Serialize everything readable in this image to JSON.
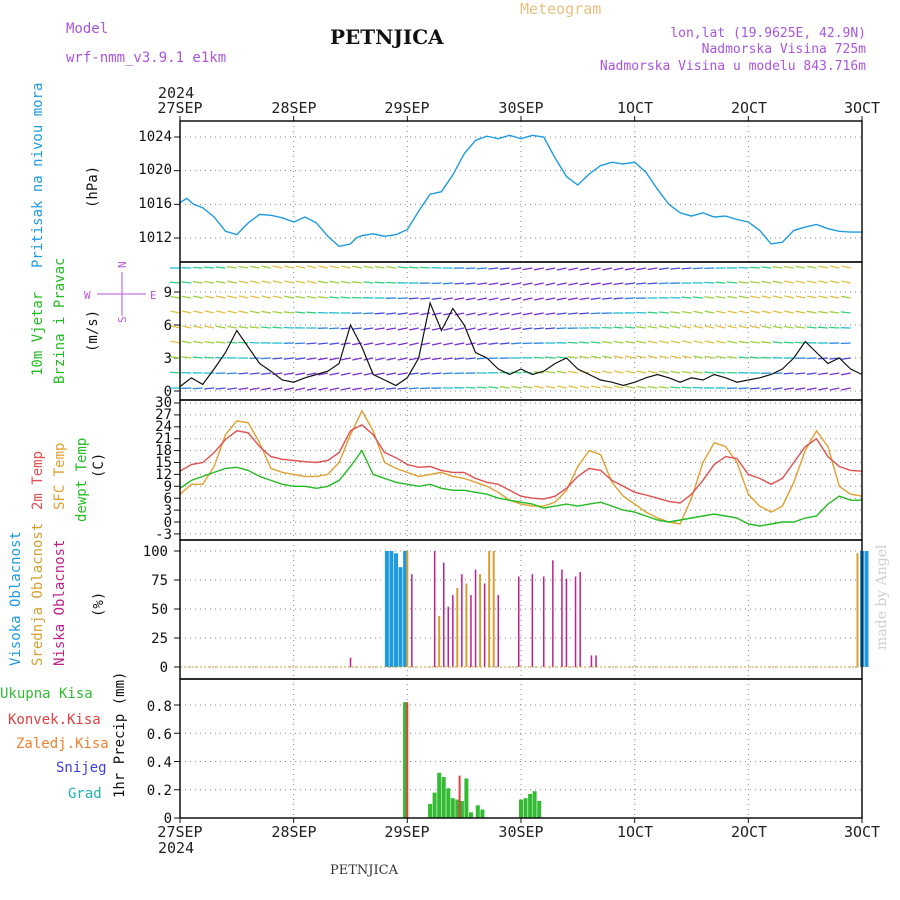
{
  "header": {
    "model_label": "Model",
    "model_name": "wrf-nmm_v3.9.1  e1km",
    "title": "PETNJICA",
    "meteogram": "Meteogram",
    "lonlat": "lon,lat (19.9625E, 42.9N)",
    "altitude": "Nadmorska Visina 725m",
    "model_altitude": "Nadmorska Visina u modelu 843.716m",
    "year_top": "2024",
    "year_bottom": "2024",
    "footer": "PETNJICA",
    "watermark": "made by Angel"
  },
  "colors": {
    "pressure": "#1e9be0",
    "wind_label": "#22bb22",
    "wind_axis_label": "#bb55dd",
    "temp2m": "#e05050",
    "sfc": "#e0a030",
    "dewpt": "#22bb22",
    "cloud_high": "#1e9be0",
    "cloud_mid": "#d4a030",
    "cloud_low": "#c0208a",
    "precip_total": "#33bb33",
    "precip_conv": "#e04040",
    "precip_frz": "#f08030",
    "precip_snow": "#4040dd",
    "precip_grad": "#22b0b0"
  },
  "chart_data": [
    {
      "type": "line",
      "panel": "pressure",
      "ylabel": "Pritisak na nivou mora",
      "unit": "(hPa)",
      "ylim": [
        1009.5,
        1026
      ],
      "yticks": [
        "1012",
        "1016",
        "1020",
        "1024"
      ],
      "x_tick_labels": [
        "27SEP",
        "28SEP",
        "29SEP",
        "30SEP",
        "1OCT",
        "2OCT",
        "3OCT"
      ],
      "x_tick_display": [
        "27SEP",
        "28SEP",
        "29SEP",
        "30SEP",
        "1OCT",
        "2OCT",
        "3OCT"
      ],
      "series": [
        {
          "name": "Pritisak na nivou mora",
          "x": [
            0,
            0.06,
            0.12,
            0.2,
            0.3,
            0.4,
            0.5,
            0.6,
            0.7,
            0.8,
            0.9,
            1.0,
            1.1,
            1.2,
            1.3,
            1.4,
            1.5,
            1.55,
            1.6,
            1.7,
            1.8,
            1.9,
            2.0,
            2.1,
            2.2,
            2.3,
            2.4,
            2.5,
            2.6,
            2.7,
            2.8,
            2.9,
            3.0,
            3.1,
            3.2,
            3.3,
            3.4,
            3.5,
            3.6,
            3.7,
            3.8,
            3.9,
            4.0,
            4.1,
            4.2,
            4.3,
            4.4,
            4.5,
            4.6,
            4.7,
            4.8,
            4.9,
            5.0,
            5.1,
            5.2,
            5.3,
            5.4,
            5.5,
            5.6,
            5.7,
            5.8,
            5.9,
            6.0
          ],
          "values": [
            1016.2,
            1016.7,
            1016.0,
            1015.6,
            1014.5,
            1012.8,
            1012.4,
            1013.8,
            1014.8,
            1014.7,
            1014.4,
            1013.9,
            1014.5,
            1013.8,
            1012.2,
            1011.0,
            1011.3,
            1012.0,
            1012.3,
            1012.5,
            1012.2,
            1012.4,
            1013.0,
            1015.2,
            1017.2,
            1017.5,
            1019.5,
            1022.0,
            1023.6,
            1024.1,
            1023.8,
            1024.2,
            1023.8,
            1024.2,
            1024.0,
            1021.5,
            1019.3,
            1018.3,
            1019.6,
            1020.6,
            1021.0,
            1020.8,
            1021.0,
            1019.8,
            1017.8,
            1016.0,
            1015.0,
            1014.6,
            1015.0,
            1014.5,
            1014.6,
            1014.2,
            1013.9,
            1012.9,
            1011.3,
            1011.5,
            1012.9,
            1013.3,
            1013.6,
            1013.1,
            1012.8,
            1012.7,
            1012.7
          ]
        }
      ]
    },
    {
      "type": "line",
      "panel": "wind",
      "ylabel_lines": [
        "10m Vjetar",
        "Brzina i Pravac"
      ],
      "unit": "(m/s)",
      "axis_note_w": "W",
      "axis_note_e": "E",
      "axis_note_n": "N",
      "axis_note_s": "S",
      "ylim": [
        0,
        12
      ],
      "yticks": [
        "0",
        "3",
        "6",
        "9"
      ],
      "series": [
        {
          "name": "Brzina",
          "x": [
            0,
            0.1,
            0.2,
            0.3,
            0.4,
            0.5,
            0.6,
            0.7,
            0.8,
            0.9,
            1.0,
            1.1,
            1.2,
            1.3,
            1.4,
            1.5,
            1.6,
            1.7,
            1.8,
            1.9,
            2.0,
            2.1,
            2.2,
            2.3,
            2.4,
            2.5,
            2.6,
            2.7,
            2.8,
            2.9,
            3.0,
            3.1,
            3.2,
            3.3,
            3.4,
            3.5,
            3.6,
            3.7,
            3.8,
            3.9,
            4.0,
            4.1,
            4.2,
            4.3,
            4.4,
            4.5,
            4.6,
            4.7,
            4.8,
            4.9,
            5.0,
            5.1,
            5.2,
            5.3,
            5.4,
            5.5,
            5.6,
            5.7,
            5.8,
            5.9,
            6.0
          ],
          "values": [
            0.4,
            1.2,
            0.6,
            2.0,
            3.5,
            5.5,
            4.0,
            2.5,
            1.8,
            1.0,
            0.8,
            1.2,
            1.5,
            1.8,
            2.5,
            6.0,
            4.0,
            1.5,
            1.0,
            0.5,
            1.2,
            3.0,
            8.0,
            5.5,
            7.5,
            6.0,
            3.5,
            3.0,
            2.0,
            1.5,
            2.0,
            1.5,
            1.8,
            2.5,
            3.0,
            2.0,
            1.5,
            1.0,
            0.8,
            0.5,
            0.8,
            1.2,
            1.5,
            1.2,
            0.8,
            1.2,
            1.0,
            1.5,
            1.2,
            0.8,
            1.0,
            1.2,
            1.5,
            2.0,
            3.0,
            4.5,
            3.5,
            2.5,
            3.0,
            2.0,
            1.5
          ]
        }
      ]
    },
    {
      "type": "line",
      "panel": "temperature",
      "ylabel_lines": [
        "2m Temp",
        "SFC Temp",
        "dewpt Temp"
      ],
      "unit": "(C)",
      "ylim": [
        -4,
        30
      ],
      "yticks": [
        "-3",
        "0",
        "3",
        "6",
        "9",
        "12",
        "15",
        "18",
        "21",
        "24",
        "27",
        "30"
      ],
      "x": [
        0,
        0.1,
        0.2,
        0.3,
        0.4,
        0.5,
        0.6,
        0.7,
        0.8,
        0.9,
        1.0,
        1.1,
        1.2,
        1.3,
        1.4,
        1.5,
        1.6,
        1.7,
        1.8,
        1.9,
        2.0,
        2.1,
        2.2,
        2.3,
        2.4,
        2.5,
        2.6,
        2.7,
        2.8,
        2.9,
        3.0,
        3.1,
        3.2,
        3.3,
        3.4,
        3.5,
        3.6,
        3.7,
        3.8,
        3.9,
        4.0,
        4.1,
        4.2,
        4.3,
        4.4,
        4.5,
        4.6,
        4.7,
        4.8,
        4.9,
        5.0,
        5.1,
        5.2,
        5.3,
        5.4,
        5.5,
        5.6,
        5.7,
        5.8,
        5.9,
        6.0
      ],
      "series": [
        {
          "name": "2m Temp",
          "values": [
            12.8,
            14.5,
            15.0,
            17.5,
            20.8,
            23.0,
            22.5,
            19.0,
            16.5,
            15.8,
            15.5,
            15.2,
            15.0,
            15.5,
            17.5,
            23.0,
            24.5,
            22.0,
            17.5,
            16.2,
            14.5,
            13.8,
            14.0,
            13.0,
            12.5,
            12.5,
            11.0,
            10.0,
            9.5,
            8.0,
            6.5,
            6.0,
            5.8,
            6.5,
            8.5,
            11.5,
            13.5,
            13.0,
            10.5,
            9.0,
            7.5,
            6.8,
            6.0,
            5.2,
            4.8,
            7.0,
            10.5,
            14.5,
            16.5,
            16.0,
            12.0,
            11.0,
            9.5,
            11.0,
            15.0,
            19.0,
            21.0,
            16.5,
            14.0,
            13.0,
            12.8
          ]
        },
        {
          "name": "SFC Temp",
          "values": [
            7.0,
            9.5,
            9.5,
            14.0,
            22.0,
            25.5,
            25.0,
            20.0,
            13.5,
            12.5,
            12.0,
            11.5,
            11.5,
            12.0,
            15.0,
            22.0,
            28.0,
            23.0,
            15.0,
            13.5,
            12.5,
            11.5,
            12.0,
            12.5,
            11.5,
            11.0,
            10.0,
            9.0,
            7.5,
            5.5,
            4.5,
            4.0,
            4.0,
            5.0,
            8.0,
            14.0,
            18.0,
            17.0,
            10.0,
            6.5,
            4.5,
            2.5,
            1.0,
            0.0,
            -0.5,
            6.0,
            15.0,
            20.0,
            19.0,
            15.0,
            7.0,
            4.0,
            2.5,
            4.0,
            10.0,
            18.0,
            23.0,
            19.0,
            9.0,
            7.0,
            6.5
          ]
        },
        {
          "name": "dewpt Temp",
          "values": [
            8.5,
            10.5,
            11.5,
            12.5,
            13.5,
            13.8,
            13.0,
            11.5,
            10.5,
            9.5,
            9.0,
            9.0,
            8.5,
            9.0,
            10.5,
            14.0,
            18.0,
            12.0,
            11.0,
            10.0,
            9.5,
            9.0,
            9.5,
            8.5,
            8.0,
            8.0,
            7.5,
            7.0,
            6.0,
            5.5,
            5.0,
            4.5,
            3.5,
            4.0,
            4.5,
            4.0,
            4.5,
            5.0,
            4.0,
            3.0,
            2.5,
            1.5,
            0.5,
            0.0,
            0.5,
            1.0,
            1.5,
            2.0,
            1.5,
            1.0,
            -0.5,
            -1.0,
            -0.5,
            0.0,
            0.0,
            1.0,
            1.5,
            4.5,
            6.5,
            5.5,
            5.5
          ]
        }
      ]
    },
    {
      "type": "bar",
      "panel": "clouds",
      "ylabel_lines": [
        "Visoka Oblacnost",
        "Srednja Oblacnost",
        "Niska Oblacnost"
      ],
      "unit": "(%)",
      "ylim": [
        0,
        100
      ],
      "yticks": [
        "0",
        "25",
        "50",
        "75",
        "100"
      ],
      "series": [
        {
          "name": "Visoka Oblacnost",
          "x": [
            1.82,
            1.86,
            1.9,
            1.94,
            1.98,
            6.0,
            6.04
          ],
          "values": [
            100,
            100,
            98,
            86,
            100,
            100,
            100
          ]
        },
        {
          "name": "Srednja Oblacnost",
          "x": [
            2.0,
            2.28,
            2.44,
            2.52,
            2.64,
            2.72,
            2.76,
            5.96
          ],
          "values": [
            100,
            44,
            68,
            72,
            80,
            100,
            100,
            98
          ]
        },
        {
          "name": "Niska Oblacnost",
          "x": [
            1.5,
            2.04,
            2.24,
            2.32,
            2.36,
            2.4,
            2.48,
            2.56,
            2.6,
            2.68,
            2.8,
            2.98,
            3.1,
            3.2,
            3.28,
            3.36,
            3.4,
            3.48,
            3.52,
            3.62,
            3.66
          ],
          "values": [
            8,
            80,
            100,
            90,
            52,
            62,
            80,
            62,
            84,
            72,
            62,
            78,
            80,
            78,
            92,
            84,
            76,
            78,
            82,
            10,
            10
          ]
        }
      ]
    },
    {
      "type": "bar",
      "panel": "precip",
      "ylabel_lines": [
        "Ukupna Kisa",
        "Konvek.Kisa",
        "Zaledj.Kisa",
        "Snijeg",
        "Grad"
      ],
      "unit": "1hr Precip (mm)",
      "ylim": [
        0,
        0.92
      ],
      "yticks": [
        "0",
        "0.2",
        "0.4",
        "0.6",
        "0.8"
      ],
      "series": [
        {
          "name": "Ukupna Kisa",
          "x": [
            1.98,
            2.2,
            2.24,
            2.28,
            2.32,
            2.36,
            2.4,
            2.44,
            2.48,
            2.52,
            2.56,
            2.62,
            2.66,
            3.0,
            3.04,
            3.08,
            3.12,
            3.16
          ],
          "values": [
            0.82,
            0.1,
            0.18,
            0.32,
            0.29,
            0.21,
            0.14,
            0.13,
            0.12,
            0.28,
            0.04,
            0.09,
            0.06,
            0.13,
            0.14,
            0.17,
            0.19,
            0.12
          ]
        },
        {
          "name": "Konvek.Kisa",
          "x": [
            2.0,
            2.46
          ],
          "values": [
            0.82,
            0.3
          ]
        }
      ]
    }
  ]
}
